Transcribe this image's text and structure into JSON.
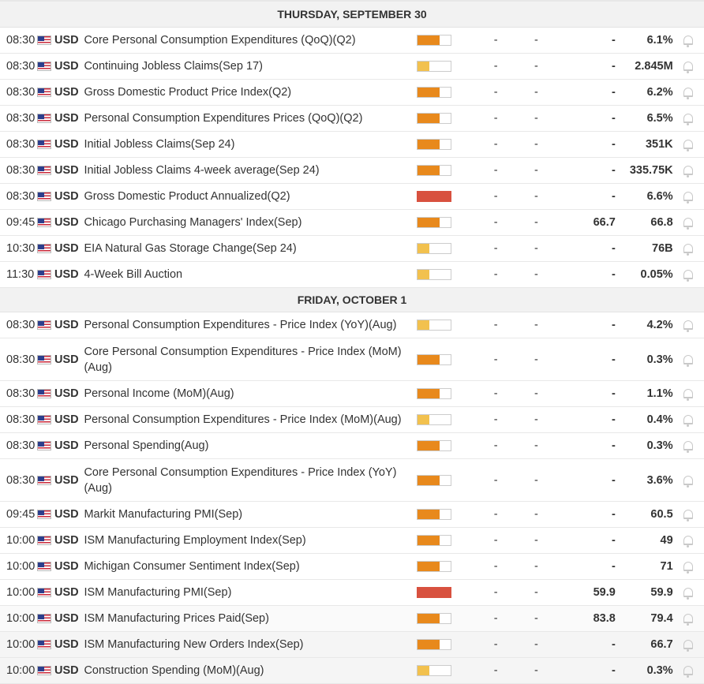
{
  "days": [
    {
      "header": "THURSDAY, SEPTEMBER 30",
      "events": [
        {
          "time": "08:30",
          "currency": "USD",
          "event": "Core Personal Consumption Expenditures (QoQ)(Q2)",
          "impact": "med",
          "actual": "-",
          "forecast": "-",
          "consensus": "-",
          "previous": "6.1%"
        },
        {
          "time": "08:30",
          "currency": "USD",
          "event": "Continuing Jobless Claims(Sep 17)",
          "impact": "low",
          "actual": "-",
          "forecast": "-",
          "consensus": "-",
          "previous": "2.845M"
        },
        {
          "time": "08:30",
          "currency": "USD",
          "event": "Gross Domestic Product Price Index(Q2)",
          "impact": "med",
          "actual": "-",
          "forecast": "-",
          "consensus": "-",
          "previous": "6.2%"
        },
        {
          "time": "08:30",
          "currency": "USD",
          "event": "Personal Consumption Expenditures Prices (QoQ)(Q2)",
          "impact": "med",
          "actual": "-",
          "forecast": "-",
          "consensus": "-",
          "previous": "6.5%"
        },
        {
          "time": "08:30",
          "currency": "USD",
          "event": "Initial Jobless Claims(Sep 24)",
          "impact": "med",
          "actual": "-",
          "forecast": "-",
          "consensus": "-",
          "previous": "351K"
        },
        {
          "time": "08:30",
          "currency": "USD",
          "event": "Initial Jobless Claims 4-week average(Sep 24)",
          "impact": "med",
          "actual": "-",
          "forecast": "-",
          "consensus": "-",
          "previous": "335.75K"
        },
        {
          "time": "08:30",
          "currency": "USD",
          "event": "Gross Domestic Product Annualized(Q2)",
          "impact": "high",
          "actual": "-",
          "forecast": "-",
          "consensus": "-",
          "previous": "6.6%"
        },
        {
          "time": "09:45",
          "currency": "USD",
          "event": "Chicago Purchasing Managers' Index(Sep)",
          "impact": "med",
          "actual": "-",
          "forecast": "-",
          "consensus": "66.7",
          "previous": "66.8"
        },
        {
          "time": "10:30",
          "currency": "USD",
          "event": "EIA Natural Gas Storage Change(Sep 24)",
          "impact": "low",
          "actual": "-",
          "forecast": "-",
          "consensus": "-",
          "previous": "76B"
        },
        {
          "time": "11:30",
          "currency": "USD",
          "event": "4-Week Bill Auction",
          "impact": "low",
          "actual": "-",
          "forecast": "-",
          "consensus": "-",
          "previous": "0.05%"
        }
      ]
    },
    {
      "header": "FRIDAY, OCTOBER 1",
      "events": [
        {
          "time": "08:30",
          "currency": "USD",
          "event": "Personal Consumption Expenditures - Price Index (YoY)(Aug)",
          "impact": "low",
          "actual": "-",
          "forecast": "-",
          "consensus": "-",
          "previous": "4.2%"
        },
        {
          "time": "08:30",
          "currency": "USD",
          "event": "Core Personal Consumption Expenditures - Price Index (MoM)(Aug)",
          "impact": "med",
          "actual": "-",
          "forecast": "-",
          "consensus": "-",
          "previous": "0.3%",
          "tall": true
        },
        {
          "time": "08:30",
          "currency": "USD",
          "event": "Personal Income (MoM)(Aug)",
          "impact": "med",
          "actual": "-",
          "forecast": "-",
          "consensus": "-",
          "previous": "1.1%"
        },
        {
          "time": "08:30",
          "currency": "USD",
          "event": "Personal Consumption Expenditures - Price Index (MoM)(Aug)",
          "impact": "low",
          "actual": "-",
          "forecast": "-",
          "consensus": "-",
          "previous": "0.4%"
        },
        {
          "time": "08:30",
          "currency": "USD",
          "event": "Personal Spending(Aug)",
          "impact": "med",
          "actual": "-",
          "forecast": "-",
          "consensus": "-",
          "previous": "0.3%"
        },
        {
          "time": "08:30",
          "currency": "USD",
          "event": "Core Personal Consumption Expenditures - Price Index (YoY)(Aug)",
          "impact": "med",
          "actual": "-",
          "forecast": "-",
          "consensus": "-",
          "previous": "3.6%",
          "tall": true
        },
        {
          "time": "09:45",
          "currency": "USD",
          "event": "Markit Manufacturing PMI(Sep)",
          "impact": "med",
          "actual": "-",
          "forecast": "-",
          "consensus": "-",
          "previous": "60.5"
        },
        {
          "time": "10:00",
          "currency": "USD",
          "event": "ISM Manufacturing Employment Index(Sep)",
          "impact": "med",
          "actual": "-",
          "forecast": "-",
          "consensus": "-",
          "previous": "49"
        },
        {
          "time": "10:00",
          "currency": "USD",
          "event": "Michigan Consumer Sentiment Index(Sep)",
          "impact": "med",
          "actual": "-",
          "forecast": "-",
          "consensus": "-",
          "previous": "71"
        },
        {
          "time": "10:00",
          "currency": "USD",
          "event": "ISM Manufacturing PMI(Sep)",
          "impact": "high",
          "actual": "-",
          "forecast": "-",
          "consensus": "59.9",
          "previous": "59.9"
        },
        {
          "time": "10:00",
          "currency": "USD",
          "event": "ISM Manufacturing Prices Paid(Sep)",
          "impact": "med",
          "actual": "-",
          "forecast": "-",
          "consensus": "83.8",
          "previous": "79.4",
          "shade": 1
        },
        {
          "time": "10:00",
          "currency": "USD",
          "event": "ISM Manufacturing New Orders Index(Sep)",
          "impact": "med",
          "actual": "-",
          "forecast": "-",
          "consensus": "-",
          "previous": "66.7",
          "shade": 2
        },
        {
          "time": "10:00",
          "currency": "USD",
          "event": "Construction Spending (MoM)(Aug)",
          "impact": "low",
          "actual": "-",
          "forecast": "-",
          "consensus": "-",
          "previous": "0.3%",
          "shade": 2
        }
      ]
    }
  ],
  "colors": {
    "impact_low": "#f2c14e",
    "impact_med": "#e8891c",
    "impact_high": "#d8513f"
  },
  "icons": {
    "flag": "us-flag-icon",
    "alert": "bell-icon"
  }
}
